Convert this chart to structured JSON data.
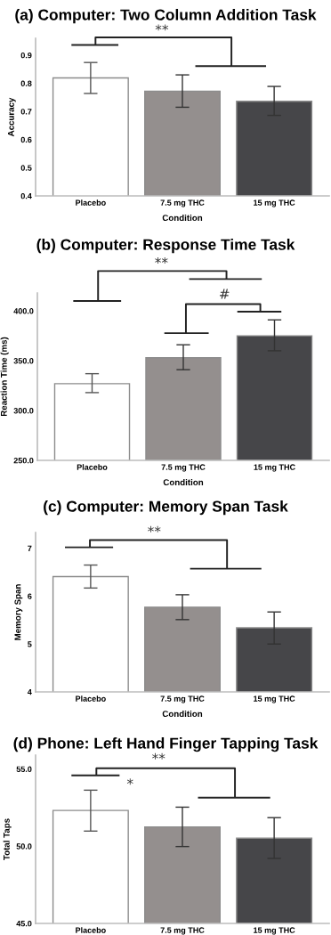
{
  "chart_data": [
    {
      "type": "bar",
      "title": "(a) Computer: Two Column Addition Task",
      "xlabel": "Condition",
      "ylabel": "Accuracy",
      "categories": [
        "Placebo",
        "7.5 mg THC",
        "15 mg THC"
      ],
      "values": [
        0.819,
        0.772,
        0.736
      ],
      "colors": [
        "#ffffff",
        "#948f8e",
        "#464649"
      ],
      "errors": [
        [
          0.764,
          0.874
        ],
        [
          0.715,
          0.83
        ],
        [
          0.686,
          0.789
        ]
      ],
      "ylim": [
        0.4,
        0.96
      ],
      "yticks": [
        0.4,
        0.5,
        0.6,
        0.7,
        0.8,
        0.9
      ],
      "grid": false,
      "annotations": [
        "**"
      ]
    },
    {
      "type": "bar",
      "title": "(b) Computer: Response Time Task",
      "xlabel": "Condition",
      "ylabel": "Reaction Time (ms)",
      "categories": [
        "Placebo",
        "7.5 mg THC",
        "15 mg THC"
      ],
      "values": [
        327,
        353,
        375
      ],
      "colors": [
        "#ffffff",
        "#948f8e",
        "#464649"
      ],
      "errors": [
        [
          318,
          337
        ],
        [
          341,
          366
        ],
        [
          360,
          391
        ]
      ],
      "ylim": [
        250,
        418
      ],
      "yticks": [
        {
          "value": 250,
          "label": "250.0"
        },
        {
          "value": 300,
          "label": "300.0"
        },
        {
          "value": 350,
          "label": "350.0"
        },
        {
          "value": 400,
          "label": "400.0"
        }
      ],
      "grid": false,
      "annotations": [
        "**",
        "#"
      ]
    },
    {
      "type": "bar",
      "title": "(c) Computer: Memory Span Task",
      "xlabel": "Condition",
      "ylabel": "Memory Span",
      "categories": [
        "Placebo",
        "7.5 mg THC",
        "15 mg THC"
      ],
      "values": [
        6.41,
        5.77,
        5.34
      ],
      "colors": [
        "#ffffff",
        "#948f8e",
        "#464649"
      ],
      "errors": [
        [
          6.17,
          6.65
        ],
        [
          5.51,
          6.03
        ],
        [
          5.0,
          5.67
        ]
      ],
      "ylim": [
        4,
        7.33
      ],
      "yticks": [
        4,
        5,
        6,
        7
      ],
      "grid": false,
      "annotations": [
        "**"
      ]
    },
    {
      "type": "bar",
      "title": "(d) Phone: Left Hand Finger Tapping Task",
      "ylabel": "Total Taps",
      "categories": [
        "Placebo",
        "7.5 mg THC",
        "15 mg THC"
      ],
      "values": [
        52.32,
        51.25,
        50.52
      ],
      "colors": [
        "#ffffff",
        "#948f8e",
        "#464649"
      ],
      "errors": [
        [
          50.98,
          53.63
        ],
        [
          49.98,
          52.53
        ],
        [
          49.21,
          51.85
        ]
      ],
      "ylim": [
        45,
        55.9
      ],
      "yticks": [
        {
          "value": 45,
          "label": "45.0"
        },
        {
          "value": 50,
          "label": "50.0"
        },
        {
          "value": 55,
          "label": "55.0"
        }
      ],
      "grid": false,
      "annotations": [
        "**",
        "*"
      ]
    }
  ]
}
